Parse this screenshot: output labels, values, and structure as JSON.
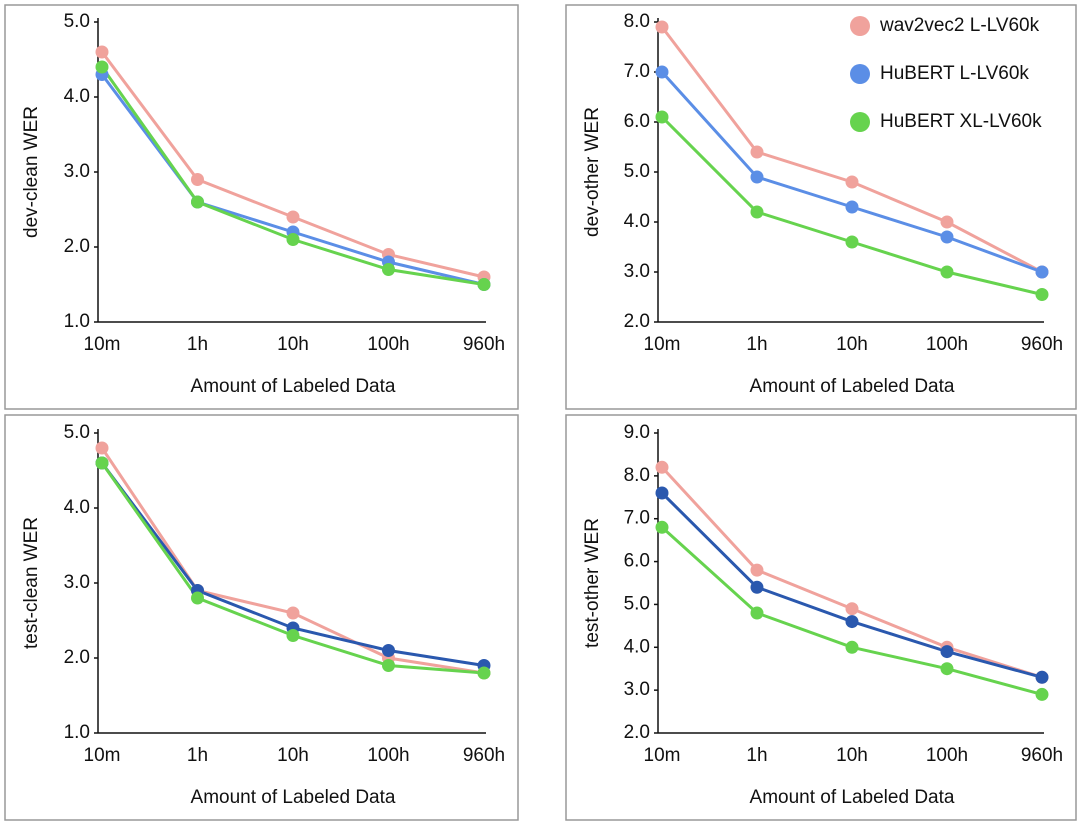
{
  "chart_data": [
    {
      "type": "line",
      "ylabel": "dev-clean WER",
      "xlabel": "Amount of Labeled Data",
      "categories": [
        "10m",
        "1h",
        "10h",
        "100h",
        "960h"
      ],
      "ylim": [
        1,
        5
      ],
      "yticks": [
        {
          "value": 1,
          "label": "1.0"
        },
        {
          "value": 2,
          "label": "2.0"
        },
        {
          "value": 3,
          "label": "3.0"
        },
        {
          "value": 4,
          "label": "4.0"
        },
        {
          "value": 5,
          "label": "5.0"
        }
      ],
      "series": [
        {
          "color": "#f0a29c",
          "values": [
            4.6,
            2.9,
            2.4,
            1.9,
            1.6
          ]
        },
        {
          "color": "#5b8ee6",
          "values": [
            4.3,
            2.6,
            2.2,
            1.8,
            1.5
          ]
        },
        {
          "color": "#66d34e",
          "values": [
            4.4,
            2.6,
            2.1,
            1.7,
            1.5
          ]
        }
      ]
    },
    {
      "type": "line",
      "ylabel": "dev-other WER",
      "xlabel": "Amount of Labeled Data",
      "categories": [
        "10m",
        "1h",
        "10h",
        "100h",
        "960h"
      ],
      "ylim": [
        2,
        8
      ],
      "yticks": [
        {
          "value": 2,
          "label": "2.0"
        },
        {
          "value": 3,
          "label": "3.0"
        },
        {
          "value": 4,
          "label": "4.0"
        },
        {
          "value": 5,
          "label": "5.0"
        },
        {
          "value": 6,
          "label": "6.0"
        },
        {
          "value": 7,
          "label": "7.0"
        },
        {
          "value": 8,
          "label": "8.0"
        }
      ],
      "legend": "top-right",
      "series": [
        {
          "name": "wav2vec2 L-LV60k",
          "color": "#f0a29c",
          "values": [
            7.9,
            5.4,
            4.8,
            4.0,
            3.0
          ]
        },
        {
          "name": "HuBERT L-LV60k",
          "color": "#5b8ee6",
          "values": [
            7.0,
            4.9,
            4.3,
            3.7,
            3.0
          ]
        },
        {
          "name": "HuBERT XL-LV60k",
          "color": "#66d34e",
          "values": [
            6.1,
            4.2,
            3.6,
            3.0,
            2.55
          ]
        }
      ]
    },
    {
      "type": "line",
      "ylabel": "test-clean WER",
      "xlabel": "Amount of Labeled Data",
      "categories": [
        "10m",
        "1h",
        "10h",
        "100h",
        "960h"
      ],
      "ylim": [
        1,
        5
      ],
      "yticks": [
        {
          "value": 1,
          "label": "1.0"
        },
        {
          "value": 2,
          "label": "2.0"
        },
        {
          "value": 3,
          "label": "3.0"
        },
        {
          "value": 4,
          "label": "4.0"
        },
        {
          "value": 5,
          "label": "5.0"
        }
      ],
      "series": [
        {
          "color": "#f0a29c",
          "values": [
            4.8,
            2.9,
            2.6,
            2.0,
            1.8
          ]
        },
        {
          "color": "#2a58ae",
          "values": [
            4.6,
            2.9,
            2.4,
            2.1,
            1.9
          ]
        },
        {
          "color": "#66d34e",
          "values": [
            4.6,
            2.8,
            2.3,
            1.9,
            1.8
          ]
        }
      ]
    },
    {
      "type": "line",
      "ylabel": "test-other WER",
      "xlabel": "Amount of Labeled Data",
      "categories": [
        "10m",
        "1h",
        "10h",
        "100h",
        "960h"
      ],
      "ylim": [
        2,
        9
      ],
      "yticks": [
        {
          "value": 2,
          "label": "2.0"
        },
        {
          "value": 3,
          "label": "3.0"
        },
        {
          "value": 4,
          "label": "4.0"
        },
        {
          "value": 5,
          "label": "5.0"
        },
        {
          "value": 6,
          "label": "6.0"
        },
        {
          "value": 7,
          "label": "7.0"
        },
        {
          "value": 8,
          "label": "8.0"
        },
        {
          "value": 9,
          "label": "9.0"
        }
      ],
      "series": [
        {
          "color": "#f0a29c",
          "values": [
            8.2,
            5.8,
            4.9,
            4.0,
            3.3
          ]
        },
        {
          "color": "#2a58ae",
          "values": [
            7.6,
            5.4,
            4.6,
            3.9,
            3.3
          ]
        },
        {
          "color": "#66d34e",
          "values": [
            6.8,
            4.8,
            4.0,
            3.5,
            2.9
          ]
        }
      ]
    }
  ]
}
